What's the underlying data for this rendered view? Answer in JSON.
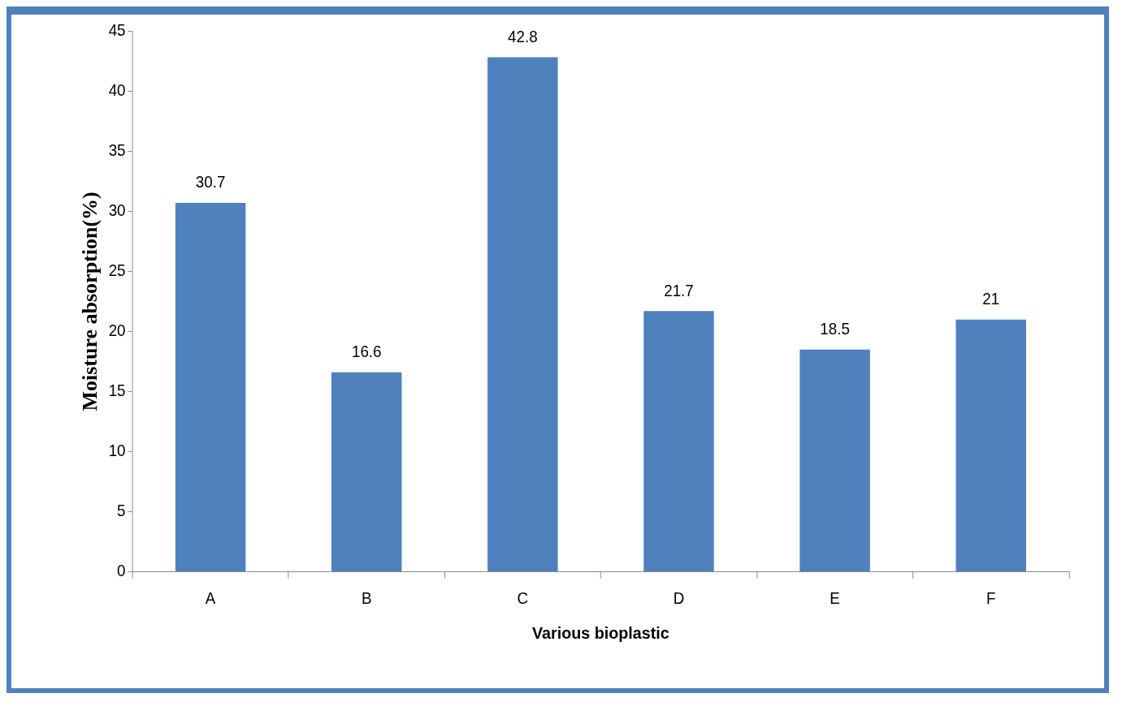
{
  "chart_data": {
    "type": "bar",
    "xlabel": "Various bioplastic",
    "ylabel": "Moisture absorption(%)",
    "categories": [
      "A",
      "B",
      "C",
      "D",
      "E",
      "F"
    ],
    "values": [
      30.7,
      16.6,
      42.8,
      21.7,
      18.5,
      21
    ],
    "color": "#4f81bd",
    "ylim": [
      0,
      45
    ],
    "yticks": [
      0,
      5,
      10,
      15,
      20,
      25,
      30,
      35,
      40,
      45
    ],
    "grid": false,
    "legend": false,
    "data_labels": true
  }
}
